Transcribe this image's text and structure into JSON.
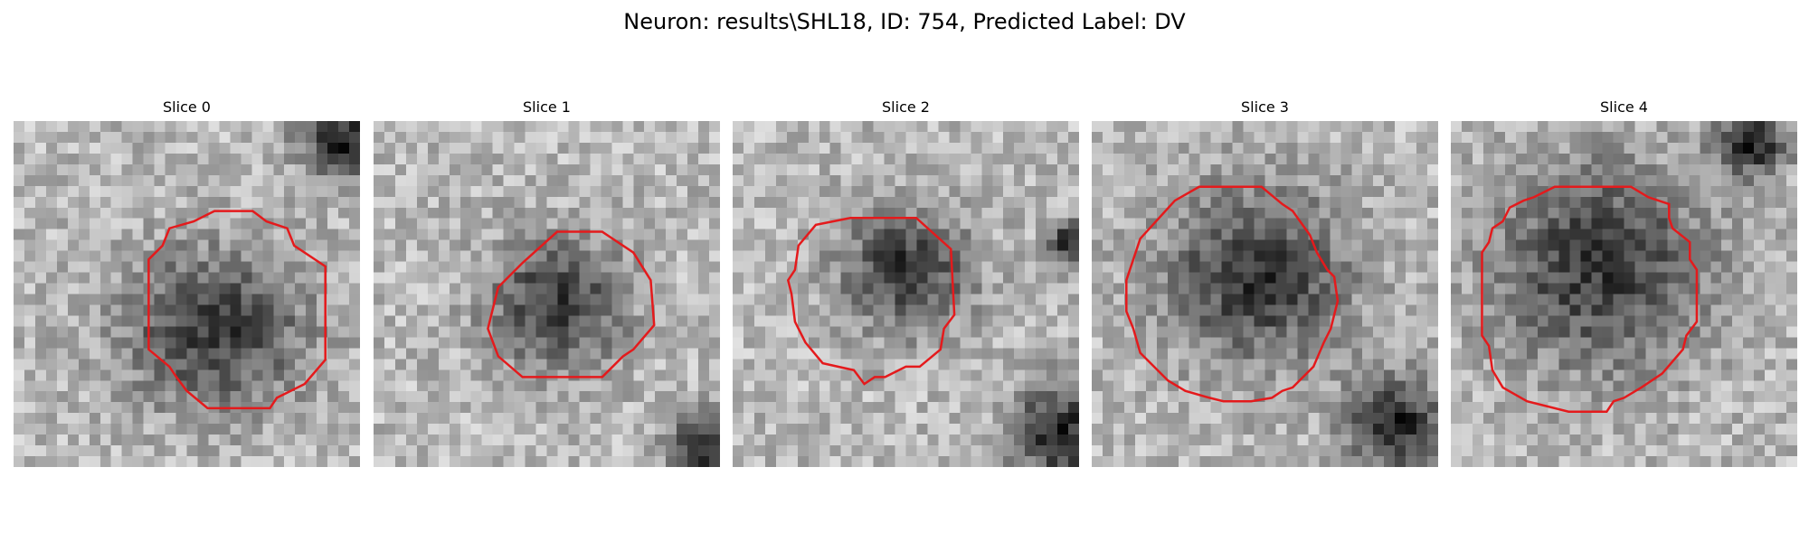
{
  "figure": {
    "suptitle": "Neuron: results\\SHL18, ID: 754, Predicted Label: DV"
  },
  "grid_size": 32,
  "panels": [
    {
      "title": "Slice 0",
      "blob": [
        0.58,
        0.6,
        0.27,
        0.23
      ],
      "dark_corners": [
        [
          0.95,
          0.05,
          0.12
        ]
      ],
      "contour": [
        [
          0.58,
          0.26
        ],
        [
          0.69,
          0.26
        ],
        [
          0.73,
          0.29
        ],
        [
          0.79,
          0.31
        ],
        [
          0.81,
          0.36
        ],
        [
          0.9,
          0.42
        ],
        [
          0.9,
          0.69
        ],
        [
          0.84,
          0.76
        ],
        [
          0.76,
          0.8
        ],
        [
          0.74,
          0.83
        ],
        [
          0.56,
          0.83
        ],
        [
          0.5,
          0.78
        ],
        [
          0.47,
          0.74
        ],
        [
          0.45,
          0.71
        ],
        [
          0.39,
          0.66
        ],
        [
          0.39,
          0.4
        ],
        [
          0.43,
          0.36
        ],
        [
          0.45,
          0.31
        ],
        [
          0.52,
          0.29
        ]
      ]
    },
    {
      "title": "Slice 1",
      "blob": [
        0.53,
        0.53,
        0.2,
        0.19
      ],
      "dark_corners": [
        [
          0.95,
          0.95,
          0.1
        ]
      ],
      "contour": [
        [
          0.53,
          0.32
        ],
        [
          0.66,
          0.32
        ],
        [
          0.75,
          0.38
        ],
        [
          0.8,
          0.46
        ],
        [
          0.81,
          0.59
        ],
        [
          0.75,
          0.66
        ],
        [
          0.72,
          0.68
        ],
        [
          0.66,
          0.74
        ],
        [
          0.43,
          0.74
        ],
        [
          0.36,
          0.68
        ],
        [
          0.33,
          0.6
        ],
        [
          0.36,
          0.48
        ],
        [
          0.43,
          0.41
        ]
      ]
    },
    {
      "title": "Slice 2",
      "blob": [
        0.5,
        0.43,
        0.19,
        0.18
      ],
      "dark_corners": [
        [
          0.95,
          0.9,
          0.14
        ],
        [
          0.97,
          0.35,
          0.06
        ]
      ],
      "contour": [
        [
          0.34,
          0.28
        ],
        [
          0.53,
          0.28
        ],
        [
          0.63,
          0.37
        ],
        [
          0.64,
          0.56
        ],
        [
          0.61,
          0.6
        ],
        [
          0.6,
          0.66
        ],
        [
          0.54,
          0.71
        ],
        [
          0.5,
          0.71
        ],
        [
          0.44,
          0.74
        ],
        [
          0.41,
          0.74
        ],
        [
          0.38,
          0.76
        ],
        [
          0.35,
          0.72
        ],
        [
          0.26,
          0.7
        ],
        [
          0.21,
          0.64
        ],
        [
          0.18,
          0.58
        ],
        [
          0.17,
          0.5
        ],
        [
          0.16,
          0.46
        ],
        [
          0.18,
          0.43
        ],
        [
          0.19,
          0.36
        ],
        [
          0.24,
          0.3
        ]
      ]
    },
    {
      "title": "Slice 3",
      "blob": [
        0.48,
        0.45,
        0.28,
        0.26
      ],
      "dark_corners": [
        [
          0.88,
          0.88,
          0.14
        ]
      ],
      "contour": [
        [
          0.31,
          0.19
        ],
        [
          0.49,
          0.19
        ],
        [
          0.55,
          0.24
        ],
        [
          0.58,
          0.26
        ],
        [
          0.63,
          0.33
        ],
        [
          0.65,
          0.38
        ],
        [
          0.68,
          0.43
        ],
        [
          0.7,
          0.45
        ],
        [
          0.71,
          0.52
        ],
        [
          0.69,
          0.6
        ],
        [
          0.67,
          0.64
        ],
        [
          0.64,
          0.71
        ],
        [
          0.58,
          0.77
        ],
        [
          0.55,
          0.78
        ],
        [
          0.52,
          0.8
        ],
        [
          0.46,
          0.81
        ],
        [
          0.38,
          0.81
        ],
        [
          0.34,
          0.8
        ],
        [
          0.27,
          0.78
        ],
        [
          0.22,
          0.75
        ],
        [
          0.14,
          0.67
        ],
        [
          0.12,
          0.6
        ],
        [
          0.1,
          0.55
        ],
        [
          0.1,
          0.46
        ],
        [
          0.12,
          0.4
        ],
        [
          0.14,
          0.34
        ],
        [
          0.24,
          0.23
        ]
      ]
    },
    {
      "title": "Slice 4",
      "blob": [
        0.43,
        0.42,
        0.32,
        0.3
      ],
      "dark_corners": [
        [
          0.87,
          0.06,
          0.1
        ]
      ],
      "contour": [
        [
          0.3,
          0.19
        ],
        [
          0.52,
          0.19
        ],
        [
          0.57,
          0.22
        ],
        [
          0.63,
          0.24
        ],
        [
          0.63,
          0.28
        ],
        [
          0.64,
          0.31
        ],
        [
          0.69,
          0.35
        ],
        [
          0.69,
          0.4
        ],
        [
          0.71,
          0.43
        ],
        [
          0.71,
          0.58
        ],
        [
          0.68,
          0.62
        ],
        [
          0.67,
          0.66
        ],
        [
          0.61,
          0.73
        ],
        [
          0.55,
          0.77
        ],
        [
          0.5,
          0.8
        ],
        [
          0.47,
          0.81
        ],
        [
          0.45,
          0.84
        ],
        [
          0.34,
          0.84
        ],
        [
          0.22,
          0.81
        ],
        [
          0.15,
          0.77
        ],
        [
          0.12,
          0.72
        ],
        [
          0.11,
          0.65
        ],
        [
          0.09,
          0.62
        ],
        [
          0.09,
          0.38
        ],
        [
          0.11,
          0.35
        ],
        [
          0.12,
          0.31
        ],
        [
          0.15,
          0.29
        ],
        [
          0.17,
          0.25
        ],
        [
          0.21,
          0.23
        ],
        [
          0.24,
          0.22
        ]
      ]
    }
  ],
  "colors": {
    "contour": "#e41a1c"
  }
}
